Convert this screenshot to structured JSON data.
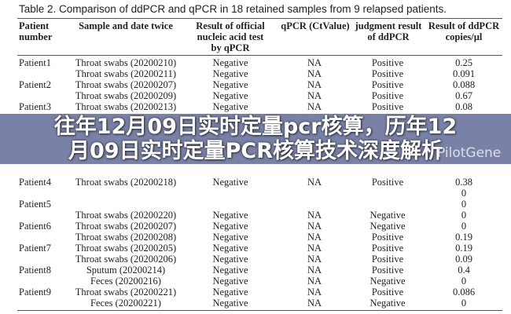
{
  "caption": "Table 2. Comparison of ddPCR and qPCR in 18 retained samples from 9 relapsed patients.",
  "headers": [
    "Patient number",
    "Sample and date twice",
    "Result of official nucleic acid test by qPCR",
    "qPCR (CtValue)",
    "judgment result of ddPCR",
    "Result of ddPCR copies/µl"
  ],
  "rows": [
    [
      "Patient1",
      "Throat swabs (20200210)",
      "Negative",
      "NA",
      "Positive",
      "0.25"
    ],
    [
      "",
      "Throat swabs (20200211)",
      "Negative",
      "NA",
      "Positive",
      "0.091"
    ],
    [
      "Patient2",
      "Throat swabs (20200207)",
      "Negative",
      "NA",
      "Positive",
      "0.088"
    ],
    [
      "",
      "Throat swabs (20200209)",
      "Negative",
      "NA",
      "Positive",
      "0.67"
    ],
    [
      "Patient3",
      "Throat swabs (20200213)",
      "Negative",
      "NA",
      "Positive",
      "0.08"
    ],
    [
      "",
      "",
      "",
      "",
      "",
      ""
    ],
    [
      "Patient4",
      "Throat swabs (20200218)",
      "Negative",
      "NA",
      "Positive",
      "0.38"
    ],
    [
      "",
      "",
      "",
      "",
      "",
      "0"
    ],
    [
      "Patient5",
      "",
      "",
      "",
      "",
      "0"
    ],
    [
      "",
      "Throat swabs (20200220)",
      "Negative",
      "NA",
      "Negative",
      "0"
    ],
    [
      "Patient6",
      "Throat swabs (20200207)",
      "Negative",
      "NA",
      "Negative",
      "0"
    ],
    [
      "",
      "Throat swabs (20200208)",
      "Negative",
      "NA",
      "Positive",
      "0.19"
    ],
    [
      "Patient7",
      "Throat swabs (20200205)",
      "Negative",
      "NA",
      "Positive",
      "0.19"
    ],
    [
      "",
      "Throat swabs (20200206)",
      "Negative",
      "NA",
      "Positive",
      "0.09"
    ],
    [
      "Patient8",
      "Sputum (20200214)",
      "Negative",
      "NA",
      "Positive",
      "0.4"
    ],
    [
      "",
      "Feces (20200216)",
      "Negative",
      "NA",
      "Negative",
      "0"
    ],
    [
      "Patient9",
      "Throat swabs (20200221)",
      "Negative",
      "NA",
      "Positive",
      "0.086"
    ],
    [
      "",
      "Feces (20200221)",
      "Negative",
      "NA",
      "Negative",
      "0"
    ]
  ],
  "overlay_title": {
    "line1": "往年12月09日实时定量pcr核算，历年12",
    "line2": "月09日实时定量PCR核算技术深度解析"
  },
  "watermark": "PilotGene",
  "overlay_color": "#6e769e"
}
